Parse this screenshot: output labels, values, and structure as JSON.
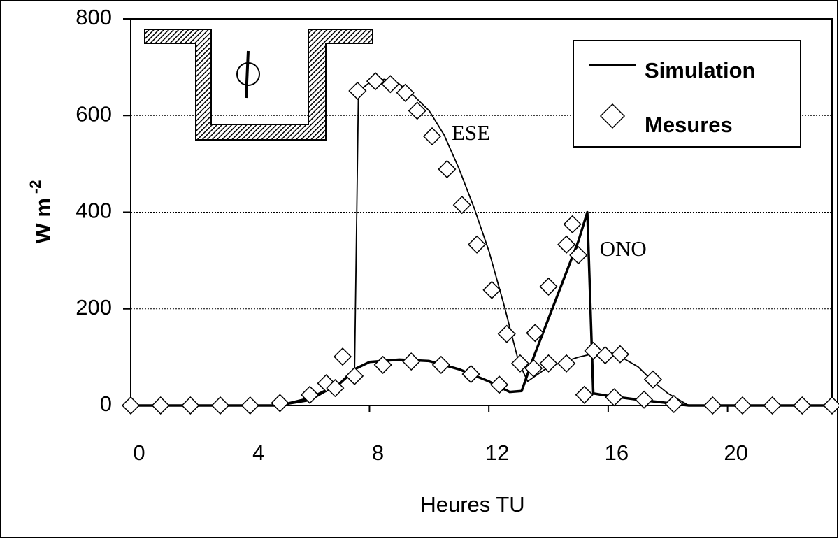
{
  "chart_data": {
    "type": "line",
    "xlabel": "Heures TU",
    "ylabel": "W m",
    "ylabel_exponent": "-2",
    "xlim": [
      0,
      23.5
    ],
    "ylim": [
      0,
      800
    ],
    "xticks": [
      0,
      4,
      8,
      12,
      16,
      20
    ],
    "yticks": [
      0,
      200,
      400,
      600,
      800
    ],
    "grid": true,
    "legend": "top-right",
    "annotations": [
      {
        "text": "ESE",
        "x": 11.4,
        "y": 560
      },
      {
        "text": "ONO",
        "x": 16.5,
        "y": 320
      }
    ],
    "series": [
      {
        "name": "Simulation",
        "type": "line",
        "color": "#000000",
        "curves": [
          {
            "x": [
              0,
              5,
              6,
              7,
              7.5,
              7.63,
              8,
              8.5,
              9,
              9.5,
              10,
              10.5,
              11,
              11.5,
              12,
              12.5,
              13,
              13.3,
              14,
              15,
              15.7,
              16.3,
              17,
              17.5,
              18,
              18.7,
              23.5
            ],
            "values": [
              0,
              0,
              10,
              45,
              70,
              650,
              668,
              675,
              665,
              640,
              610,
              560,
              490,
              410,
              320,
              210,
              90,
              50,
              80,
              100,
              110,
              105,
              80,
              50,
              25,
              0,
              0
            ]
          },
          {
            "x": [
              0,
              5,
              6,
              7,
              7.5,
              8,
              9,
              10,
              11,
              12,
              12.7,
              13.1,
              13.5,
              14,
              14.5,
              15,
              15.3,
              15.5,
              16,
              17,
              18,
              18.7,
              23.5
            ],
            "values": [
              0,
              0,
              15,
              45,
              75,
              90,
              95,
              92,
              75,
              50,
              28,
              30,
              100,
              180,
              260,
              340,
              400,
              25,
              20,
              12,
              5,
              0,
              0
            ]
          }
        ]
      },
      {
        "name": "Mesures",
        "type": "scatter",
        "color": "#000000",
        "curves": [
          {
            "x": [
              6.55,
              7.1,
              7.6,
              8.2,
              8.7,
              9.2,
              9.6,
              10.1,
              10.6,
              11.1,
              11.6,
              12.1,
              12.6,
              13.05,
              13.5,
              14.0,
              14.6,
              15.5,
              15.9,
              16.4,
              17.5
            ],
            "values": [
              46,
              101,
              651,
              671,
              665,
              647,
              610,
              557,
              489,
              415,
              333,
              239,
              148,
              87,
              77,
              87,
              87,
              113,
              104,
              106,
              54
            ]
          },
          {
            "x": [
              0,
              1,
              2,
              3,
              4,
              5,
              6,
              6.85,
              7.5,
              8.45,
              9.4,
              10.4,
              11.4,
              12.35,
              13.55,
              14.0,
              14.6,
              14.8,
              15.0,
              15.2,
              16.2,
              17.2,
              18.2,
              19.5,
              20.5,
              21.5,
              22.5,
              23.5
            ],
            "values": [
              0,
              0,
              0,
              0,
              0,
              5,
              22,
              36,
              61,
              84,
              91,
              84,
              65,
              43,
              150,
              246,
              333,
              375,
              311,
              22,
              17,
              12,
              3,
              0,
              0,
              0,
              0,
              0
            ]
          }
        ]
      }
    ]
  }
}
